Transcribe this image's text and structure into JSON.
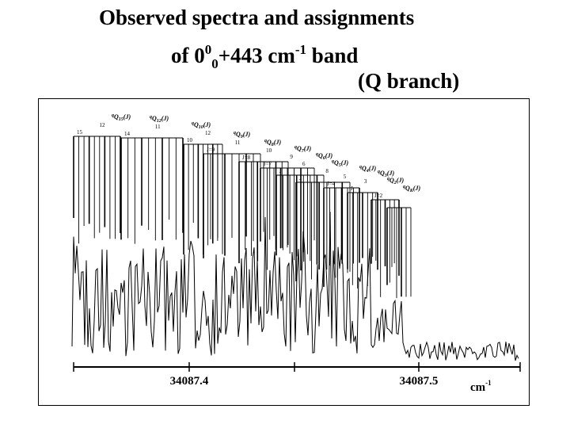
{
  "title": {
    "line1": "Observed spectra and assignments",
    "line2_prefix": "of 0",
    "line2_sup": "0",
    "line2_sub": "0",
    "line2_mid": "+443 cm",
    "line2_exp": "-1",
    "line2_suffix": " band",
    "line3": "(Q branch)"
  },
  "chart_data": {
    "type": "line",
    "title": "",
    "xlabel": "cm-1",
    "x_ticks": [
      "34087.4",
      "34087.5"
    ],
    "x_unit_base": "cm",
    "x_unit_exp": "-1",
    "branch_labels": [
      {
        "sup": "q",
        "name": "Q",
        "sub": "15",
        "arg": "(J)",
        "first_j": "15",
        "next_j": "12"
      },
      {
        "sup": "q",
        "name": "Q",
        "sub": "12",
        "arg": "(J)",
        "first_j": "14",
        "next_j": "11"
      },
      {
        "sup": "q",
        "name": "Q",
        "sub": "10",
        "arg": "(J)",
        "first_j": "10",
        "next_j": "12"
      },
      {
        "sup": "q",
        "name": "Q",
        "sub": "9",
        "arg": "(J)",
        "first_j": "J=9",
        "next_j": "11"
      },
      {
        "sup": "q",
        "name": "Q",
        "sub": "8",
        "arg": "(J)",
        "first_j": "J=8",
        "next_j": "10"
      },
      {
        "sup": "q",
        "name": "Q",
        "sub": "7",
        "arg": "(J)",
        "first_j": "J=7",
        "next_j": "9"
      },
      {
        "sup": "q",
        "name": "Q",
        "sub": "6",
        "arg": "(J)",
        "first_j": "J",
        "next_j": "6"
      },
      {
        "sup": "q",
        "name": "Q",
        "sub": "5",
        "arg": "(J)",
        "first_j": "J",
        "next_j": "8"
      },
      {
        "sup": "q",
        "name": "Q",
        "sub": "4",
        "arg": "(J)",
        "first_j": "J=4",
        "next_j": "5"
      },
      {
        "sup": "q",
        "name": "Q",
        "sub": "3",
        "arg": "(J)",
        "first_j": "J",
        "next_j": "3"
      },
      {
        "sup": "q",
        "name": "Q",
        "sub": "2",
        "arg": "(J)",
        "first_j": "J=2",
        "next_j": ""
      },
      {
        "sup": "q",
        "name": "Q",
        "sub": "K",
        "arg": "(J)",
        "first_j": "",
        "next_j": ""
      }
    ]
  }
}
